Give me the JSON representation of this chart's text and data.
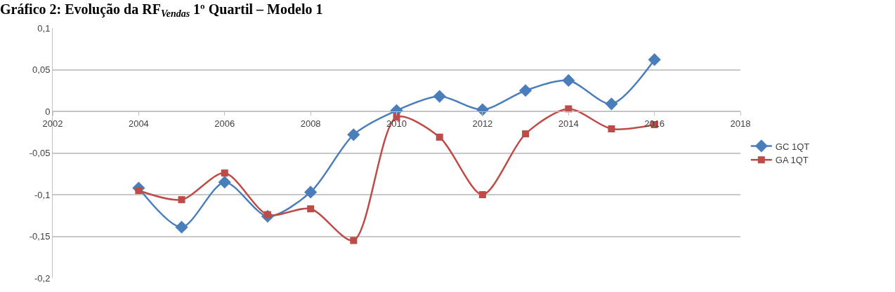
{
  "chart_data": {
    "type": "line",
    "title": "Gráfico 2: Evolução da RF$_{Vendas}$ 1º Quartil – Modelo 1",
    "x": [
      2004,
      2005,
      2006,
      2007,
      2008,
      2009,
      2010,
      2011,
      2012,
      2013,
      2014,
      2015,
      2016
    ],
    "series": [
      {
        "name": "GC 1QT",
        "color": "#4a7ebb",
        "marker": "diamond",
        "values": [
          -0.092,
          -0.139,
          -0.085,
          -0.126,
          -0.097,
          -0.028,
          0.001,
          0.018,
          0.002,
          0.025,
          0.037,
          0.009,
          0.062
        ]
      },
      {
        "name": "GA 1QT",
        "color": "#be4b48",
        "marker": "square",
        "values": [
          -0.095,
          -0.106,
          -0.074,
          -0.124,
          -0.117,
          -0.155,
          -0.007,
          -0.031,
          -0.1,
          -0.027,
          0.003,
          -0.021,
          -0.016
        ]
      }
    ],
    "xlim": [
      2002,
      2018
    ],
    "xticks": [
      2002,
      2004,
      2006,
      2008,
      2010,
      2012,
      2014,
      2016,
      2018
    ],
    "ylim": [
      -0.2,
      0.1
    ],
    "yticks": [
      {
        "value": -0.2,
        "label": "-0,2"
      },
      {
        "value": -0.15,
        "label": "-0,15"
      },
      {
        "value": -0.1,
        "label": "-0,1"
      },
      {
        "value": -0.05,
        "label": "-0,05"
      },
      {
        "value": 0,
        "label": "0"
      },
      {
        "value": 0.05,
        "label": "0,05"
      },
      {
        "value": 0.1,
        "label": "0,1"
      }
    ],
    "grid": "y",
    "legend": "right"
  }
}
